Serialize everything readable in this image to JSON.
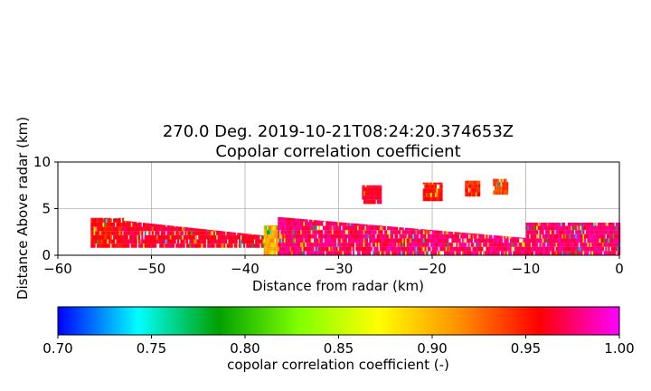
{
  "chart_data": {
    "type": "heatmap",
    "title_line1": "270.0 Deg. 2019-10-21T08:24:20.374653Z",
    "title_line2": "Copolar correlation coefficient",
    "xlabel": "Distance from radar (km)",
    "ylabel": "Distance Above radar  (km)",
    "xlim": [
      -60,
      0
    ],
    "ylim": [
      0,
      10
    ],
    "x_ticks": [
      "−60",
      "−50",
      "−40",
      "−30",
      "−20",
      "−10",
      "0"
    ],
    "y_ticks": [
      "0",
      "5",
      "10"
    ],
    "grid": true,
    "colorbar": {
      "label": "copolar correlation coefficient (-)",
      "range": [
        0.7,
        1.0
      ],
      "ticks": [
        "0.70",
        "0.75",
        "0.80",
        "0.85",
        "0.90",
        "0.95",
        "1.00"
      ],
      "colormap": [
        "#0000ff",
        "#00ffff",
        "#00a000",
        "#80ff00",
        "#ffff00",
        "#ff9000",
        "#ff0000",
        "#ff00ff"
      ]
    },
    "regions": [
      {
        "x_from": -56.5,
        "x_to": -53.0,
        "y_from": 0.8,
        "y_to": 4.0,
        "dominant": 0.97
      },
      {
        "x_from": -53.0,
        "x_to": -38.0,
        "y_from": 0.8,
        "y_to": 3.7,
        "dominant": 0.98
      },
      {
        "x_from": -38.0,
        "x_to": -36.5,
        "y_from": 0.0,
        "y_to": 3.2,
        "dominant": 0.92
      },
      {
        "x_from": -36.5,
        "x_to": -10.0,
        "y_from": 0.0,
        "y_to": 4.1,
        "dominant": 0.99
      },
      {
        "x_from": -10.0,
        "x_to": 0.0,
        "y_from": 0.0,
        "y_to": 3.5,
        "dominant": 0.99
      },
      {
        "x_from": -27.5,
        "x_to": -25.5,
        "y_from": 5.5,
        "y_to": 7.5,
        "dominant": 0.98
      },
      {
        "x_from": -21.0,
        "x_to": -19.0,
        "y_from": 5.8,
        "y_to": 7.8,
        "dominant": 0.97
      },
      {
        "x_from": -16.5,
        "x_to": -15.0,
        "y_from": 6.3,
        "y_to": 8.0,
        "dominant": 0.96
      },
      {
        "x_from": -13.5,
        "x_to": -12.0,
        "y_from": 6.5,
        "y_to": 8.2,
        "dominant": 0.95
      }
    ]
  }
}
